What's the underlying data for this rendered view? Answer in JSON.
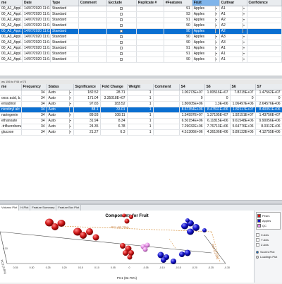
{
  "top_table": {
    "columns": [
      "me",
      "Date",
      "Type",
      "Comment",
      "Exclude",
      "Replicate #",
      "#Features",
      "Fruit",
      "Cultivar",
      "Confidence"
    ],
    "rows": [
      {
        "name": "00_A1_Appl...",
        "date": "14/07/2020 11:0...",
        "type": "Standard",
        "comment": "",
        "features": "91",
        "fruit": "Apples",
        "cultivar": "A1",
        "selected": false
      },
      {
        "name": "00_A1_Appl...",
        "date": "14/07/2020 11:0...",
        "type": "Standard",
        "comment": "",
        "features": "93",
        "fruit": "Apples",
        "cultivar": "A1",
        "selected": false
      },
      {
        "name": "00_A2_Appl...",
        "date": "14/07/2020 11:0...",
        "type": "Standard",
        "comment": "",
        "features": "91",
        "fruit": "Apples",
        "cultivar": "A2",
        "selected": false
      },
      {
        "name": "00_A2_Appl...",
        "date": "14/07/2020 11:0...",
        "type": "Standard",
        "comment": "",
        "features": "90",
        "fruit": "Apples",
        "cultivar": "A2",
        "selected": false
      },
      {
        "name": "00_A2_Appl...",
        "date": "14/07/2020 11:0...",
        "type": "Standard",
        "comment": "",
        "features": "90",
        "fruit": "Apples",
        "cultivar": "A2",
        "selected": true
      },
      {
        "name": "00_A3_Appl...",
        "date": "14/07/2020 11:0...",
        "type": "Standard",
        "comment": "",
        "features": "90",
        "fruit": "Apples",
        "cultivar": "A3",
        "selected": false
      },
      {
        "name": "00_A3_Appl...",
        "date": "14/07/2020 11:0...",
        "type": "Standard",
        "comment": "",
        "features": "90",
        "fruit": "Apples",
        "cultivar": "A3",
        "selected": false
      },
      {
        "name": "00_A1_Appl...",
        "date": "14/07/2020 11:0...",
        "type": "Standard",
        "comment": "",
        "features": "91",
        "fruit": "Apples",
        "cultivar": "A1",
        "selected": false
      },
      {
        "name": "00_A1_Appl...",
        "date": "14/07/2020 11:0...",
        "type": "Standard",
        "comment": "",
        "features": "91",
        "fruit": "Apples",
        "cultivar": "A1",
        "selected": false
      },
      {
        "name": "00_A1_Appl...",
        "date": "14/07/2020 11:0...",
        "type": "Standard",
        "comment": "",
        "features": "90",
        "fruit": "Apples",
        "cultivar": "A1",
        "selected": false
      }
    ]
  },
  "status_text": "ws 156 to F45 of 73",
  "bottom_table": {
    "columns": [
      "me",
      "Frequency",
      "Status",
      "Significance",
      "Fold Change",
      "Weight",
      "Comment",
      "S4",
      "S6",
      "S6",
      "S7"
    ],
    "rows": [
      {
        "name": "",
        "freq": "34",
        "status": "Auto",
        "sig": "182.52",
        "fc": "28.71",
        "weight": "1",
        "s4": "1.00273E+07",
        "s6a": "1.00516E+07",
        "s6b": "7.8215E+07",
        "s7": "1.47562E+07",
        "selected": false
      },
      {
        "name": "oxsc acid, b...",
        "freq": "34",
        "status": "Auto",
        "sig": "171.04",
        "fc": "3.35018E+07",
        "weight": "1",
        "s4": "0",
        "s6a": "0",
        "s6b": "0",
        "s7": "0",
        "selected": false
      },
      {
        "name": "entadinol",
        "freq": "34",
        "status": "Auto",
        "sig": "97.65",
        "fc": "183.52",
        "weight": "1",
        "s4": "1.80605E+06",
        "s6a": "1.3E+06",
        "s6b": "1.06497E+06",
        "s7": "2.64576E+06",
        "selected": false
      },
      {
        "name": "nicotinyl alc",
        "freq": "34",
        "status": "Auto",
        "sig": "88.1",
        "fc": "33.01",
        "weight": "1",
        "s4": "8.67354E+06",
        "s6a": "8.47511E+06",
        "s6b": "1.82117E+07",
        "s7": "8.40051E+06",
        "selected": true
      },
      {
        "name": "naringenin",
        "freq": "34",
        "status": "Auto",
        "sig": "89.93",
        "fc": "108.11",
        "weight": "1",
        "s4": "1.54597E+07",
        "s6a": "1.37195E+07",
        "s6b": "1.92151E+07",
        "s7": "1.43756E+07",
        "selected": false
      },
      {
        "name": "ethanoate",
        "freq": "34",
        "status": "Auto",
        "sig": "31.94",
        "fc": "8.34",
        "weight": "1",
        "s4": "6.50154E+06",
        "s6a": "6.11815E+06",
        "s6b": "9.61548E+06",
        "s7": "9.90056E+06",
        "selected": false
      },
      {
        "name": "-trifluorobenzene",
        "freq": "34",
        "status": "Auto",
        "sig": "24.35",
        "fc": "6.78",
        "weight": "1",
        "s4": "7.29032E+06",
        "s6a": "7.76713E+06",
        "s6b": "5.64776E+06",
        "s7": "8.0312E+06",
        "selected": false
      },
      {
        "name": "glucose",
        "freq": "34",
        "status": "Auto",
        "sig": "21.27",
        "fc": "6.3",
        "weight": "1",
        "s4": "4.51306E+06",
        "s6a": "4.36106E+06",
        "s6b": "5.89132E+06",
        "s7": "4.12755E+06",
        "selected": false
      }
    ]
  },
  "tabs": [
    "Volcano Plot",
    "H-Plot",
    "Feature Summary",
    "Feature Box Plot"
  ],
  "plot": {
    "title": "Components for Fruit",
    "pc1_label": "PC1 (82.75%)",
    "pc2_label": "PC2 (12.6%)",
    "x_ticks": [
      "0.35",
      "0.30",
      "0.25",
      "0.20",
      "0.15",
      "0.10",
      "0.05",
      "0",
      "-0.05",
      "-0.10",
      "-0.15",
      "-0.20",
      "-0.25",
      "-0.30"
    ],
    "pc_left_label": "PC3 (3.8%)",
    "right_ticks": [
      "-0.30"
    ],
    "left_ticks": [
      "0.10"
    ]
  },
  "legend": [
    {
      "label": "Pears",
      "color": "#d01818"
    },
    {
      "label": "Apples",
      "color": "#1010c8"
    },
    {
      "label": "QC",
      "color": "#e48ee4"
    }
  ],
  "axis_items": [
    "X Axis",
    "Y Axis",
    "Z Axis"
  ],
  "plot_options": [
    {
      "label": "Scores Plot",
      "on": true
    },
    {
      "label": "Loadings Plot",
      "on": false
    }
  ]
}
